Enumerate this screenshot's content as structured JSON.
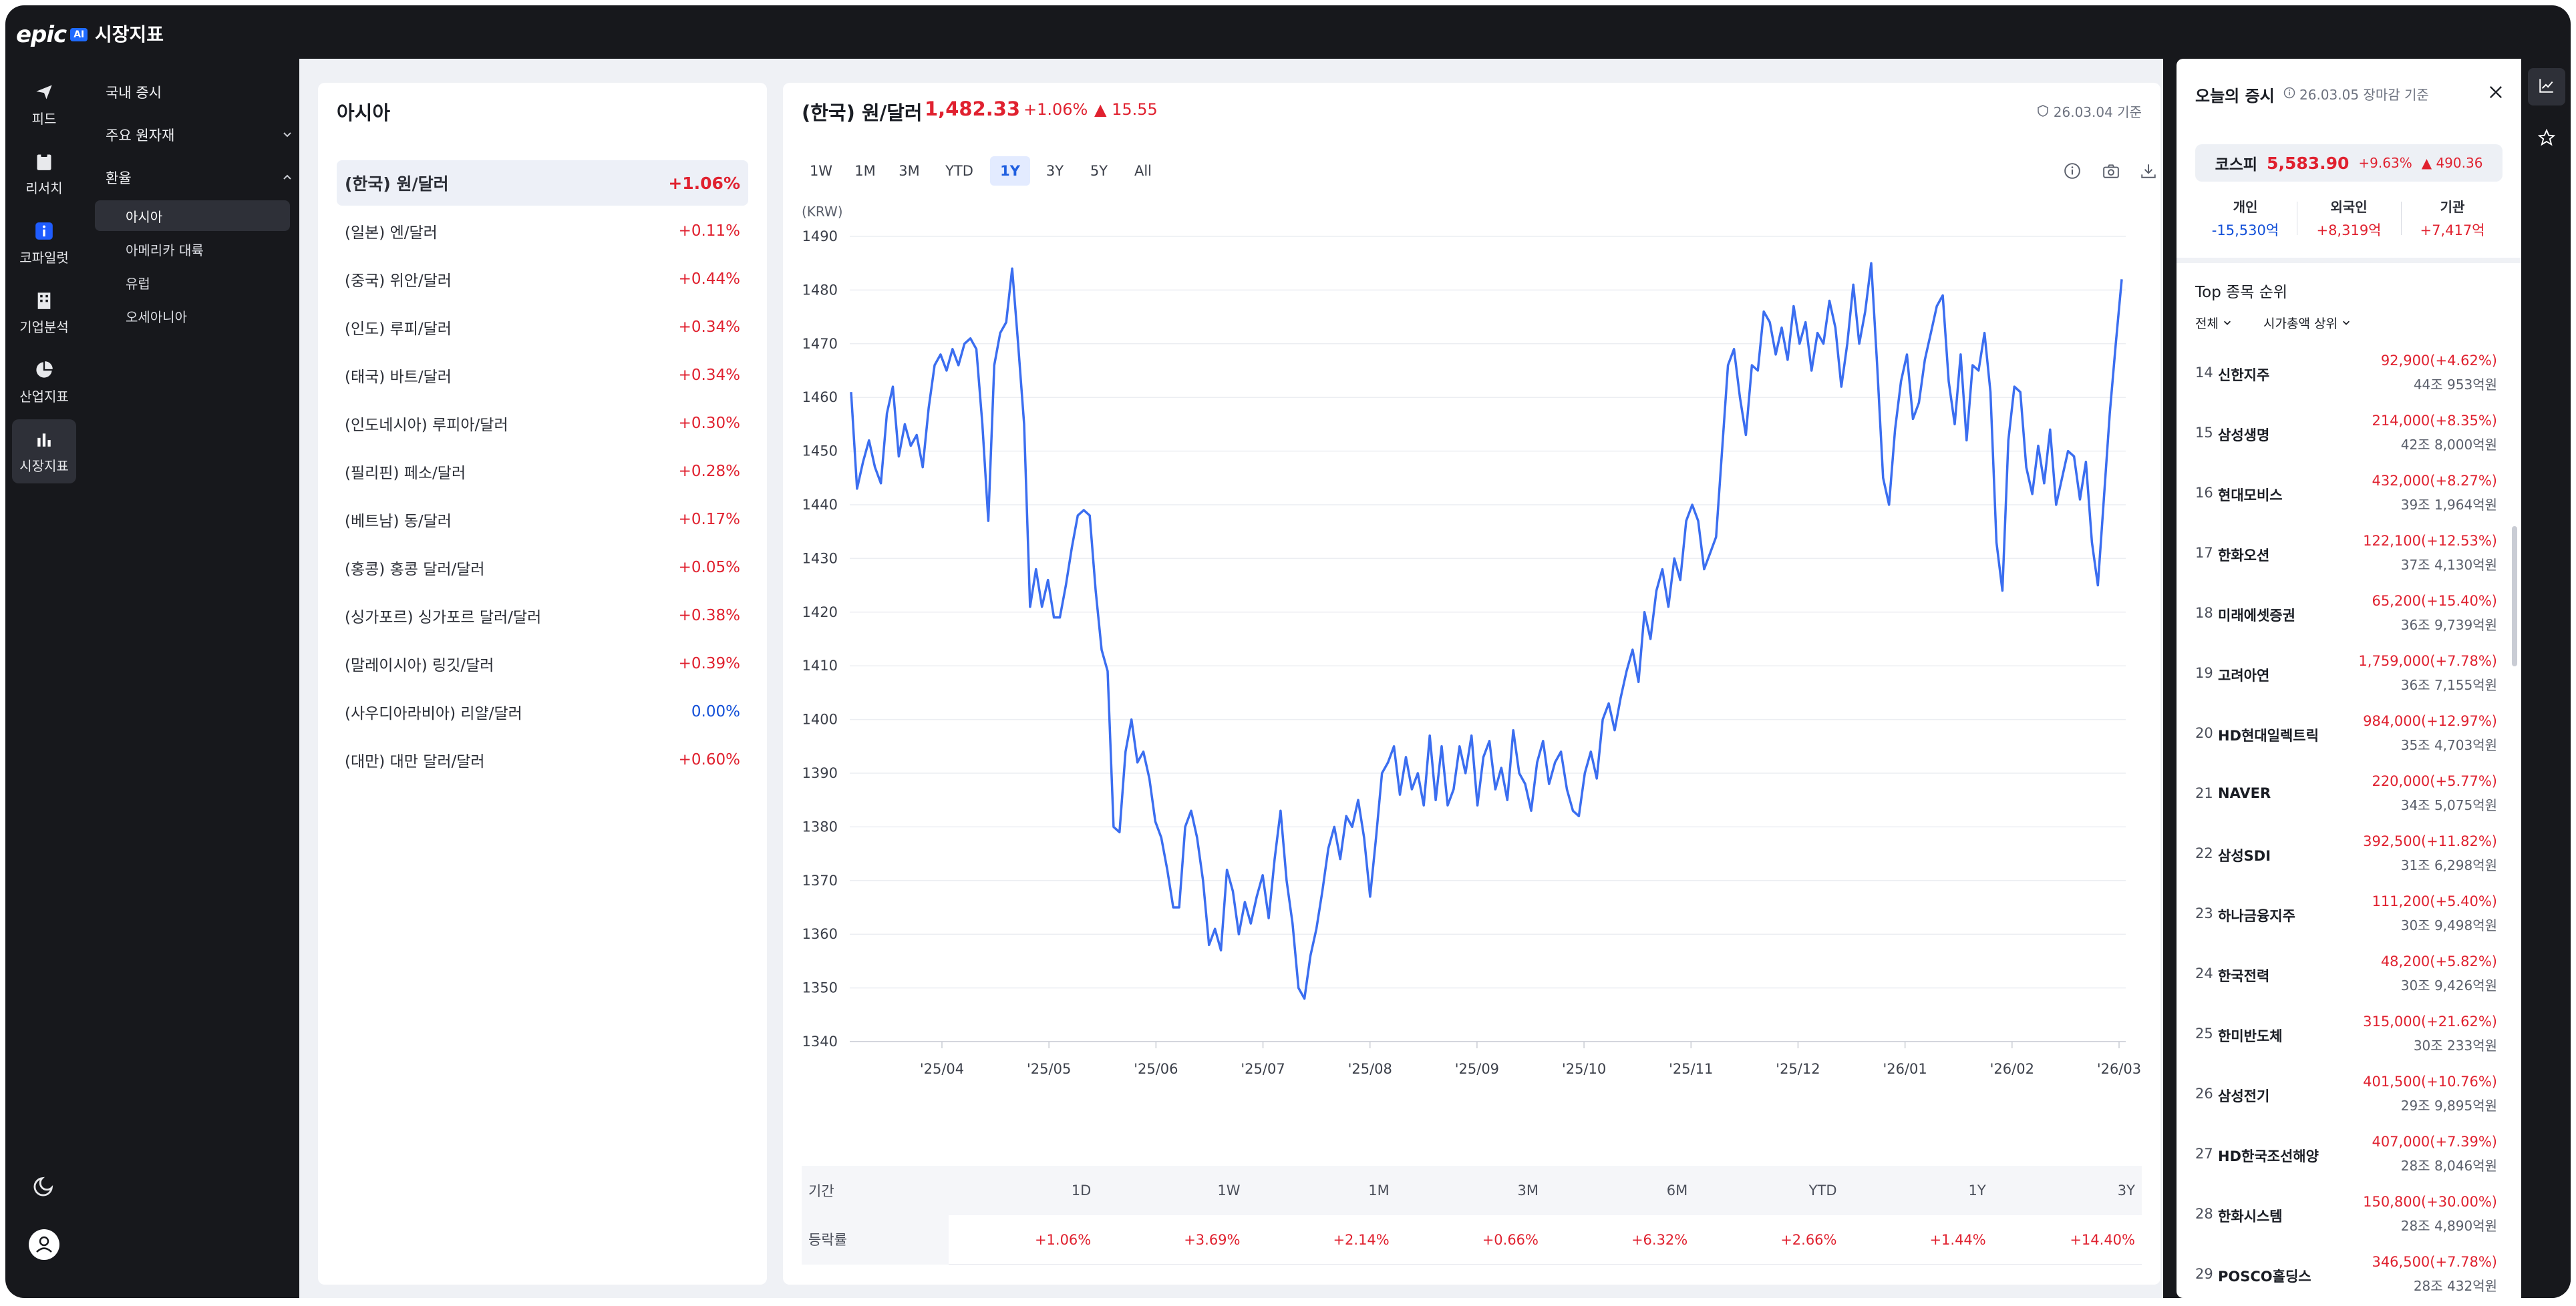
{
  "app": {
    "logo": "epic",
    "logo_badge": "AI",
    "title": "시장지표"
  },
  "rail": {
    "items": [
      {
        "label": "피드",
        "icon": "send-icon"
      },
      {
        "label": "리서치",
        "icon": "clipboard-icon"
      },
      {
        "label": "코파일럿",
        "icon": "info-icon"
      },
      {
        "label": "기업분석",
        "icon": "building-icon"
      },
      {
        "label": "산업지표",
        "icon": "pie-icon"
      },
      {
        "label": "시장지표",
        "icon": "bar-chart-icon"
      }
    ]
  },
  "subnav": {
    "domestic": "국내 증시",
    "commodities": "주요 원자재",
    "fx": "환율",
    "fx_items": [
      "아시아",
      "아메리카 대륙",
      "유럽",
      "오세아니아"
    ]
  },
  "list": {
    "title": "아시아",
    "items": [
      {
        "name": "(한국) 원/달러",
        "pct": "+1.06%"
      },
      {
        "name": "(일본) 엔/달러",
        "pct": "+0.11%"
      },
      {
        "name": "(중국) 위안/달러",
        "pct": "+0.44%"
      },
      {
        "name": "(인도) 루피/달러",
        "pct": "+0.34%"
      },
      {
        "name": "(태국) 바트/달러",
        "pct": "+0.34%"
      },
      {
        "name": "(인도네시아) 루피아/달러",
        "pct": "+0.30%"
      },
      {
        "name": "(필리핀) 페소/달러",
        "pct": "+0.28%"
      },
      {
        "name": "(베트남) 동/달러",
        "pct": "+0.17%"
      },
      {
        "name": "(홍콩) 홍콩 달러/달러",
        "pct": "+0.05%"
      },
      {
        "name": "(싱가포르) 싱가포르 달러/달러",
        "pct": "+0.38%"
      },
      {
        "name": "(말레이시아) 링깃/달러",
        "pct": "+0.39%"
      },
      {
        "name": "(사우디아라비아) 리얄/달러",
        "pct": "0.00%"
      },
      {
        "name": "(대만) 대만 달러/달러",
        "pct": "+0.60%"
      }
    ]
  },
  "chart_panel": {
    "title": "(한국) 원/달러",
    "price": "1,482.33",
    "pct": "+1.06%",
    "change": "▲ 15.55",
    "date": "26.03.04 기준",
    "ranges": [
      "1W",
      "1M",
      "3M",
      "YTD",
      "1Y",
      "3Y",
      "5Y",
      "All"
    ],
    "active_range": "1Y"
  },
  "stats": {
    "header_label": "기간",
    "row_label": "등락률",
    "periods": [
      "1D",
      "1W",
      "1M",
      "3M",
      "6M",
      "YTD",
      "1Y",
      "3Y"
    ],
    "values": [
      "+1.06%",
      "+3.69%",
      "+2.14%",
      "+0.66%",
      "+6.32%",
      "+2.66%",
      "+1.44%",
      "+14.40%"
    ]
  },
  "chart_data": {
    "type": "line",
    "ylabel": "(KRW)",
    "ylim": [
      1340,
      1490
    ],
    "yticks": [
      1340,
      1350,
      1360,
      1370,
      1380,
      1390,
      1400,
      1410,
      1420,
      1430,
      1440,
      1450,
      1460,
      1470,
      1480,
      1490
    ],
    "xticks": [
      "'25/04",
      "'25/05",
      "'25/06",
      "'25/07",
      "'25/08",
      "'25/09",
      "'25/10",
      "'25/11",
      "'25/12",
      "'26/01",
      "'26/02",
      "'26/03"
    ],
    "color": "#3b6ef0",
    "grid": true,
    "series": [
      {
        "values": [
          1461,
          1443,
          1448,
          1452,
          1447,
          1444,
          1457,
          1462,
          1449,
          1455,
          1451,
          1453,
          1447,
          1458,
          1466,
          1468,
          1465,
          1469,
          1466,
          1470,
          1471,
          1469,
          1455,
          1437,
          1466,
          1472,
          1474,
          1484,
          1470,
          1455,
          1421,
          1428,
          1421,
          1426,
          1419,
          1419,
          1425,
          1432,
          1438,
          1439,
          1438,
          1424,
          1413,
          1409,
          1380,
          1379,
          1394,
          1400,
          1392,
          1394,
          1389,
          1381,
          1378,
          1372,
          1365,
          1365,
          1380,
          1383,
          1378,
          1370,
          1358,
          1361,
          1357,
          1372,
          1368,
          1360,
          1366,
          1362,
          1367,
          1371,
          1363,
          1374,
          1383,
          1370,
          1362,
          1350,
          1348,
          1356,
          1361,
          1368,
          1376,
          1380,
          1374,
          1382,
          1380,
          1385,
          1378,
          1367,
          1378,
          1390,
          1392,
          1395,
          1386,
          1393,
          1387,
          1390,
          1384,
          1397,
          1385,
          1395,
          1384,
          1387,
          1395,
          1390,
          1397,
          1384,
          1393,
          1396,
          1387,
          1391,
          1385,
          1398,
          1390,
          1388,
          1383,
          1392,
          1396,
          1388,
          1392,
          1394,
          1387,
          1383,
          1382,
          1390,
          1394,
          1389,
          1400,
          1403,
          1398,
          1404,
          1409,
          1413,
          1407,
          1420,
          1415,
          1424,
          1428,
          1421,
          1430,
          1426,
          1437,
          1440,
          1437,
          1428,
          1431,
          1434,
          1450,
          1466,
          1469,
          1460,
          1453,
          1466,
          1465,
          1476,
          1474,
          1468,
          1473,
          1467,
          1477,
          1470,
          1474,
          1465,
          1472,
          1470,
          1478,
          1473,
          1462,
          1470,
          1481,
          1470,
          1476,
          1485,
          1466,
          1445,
          1440,
          1454,
          1463,
          1468,
          1456,
          1459,
          1467,
          1472,
          1477,
          1479,
          1463,
          1455,
          1468,
          1452,
          1466,
          1465,
          1472,
          1461,
          1433,
          1424,
          1452,
          1462,
          1461,
          1447,
          1442,
          1451,
          1444,
          1454,
          1440,
          1445,
          1450,
          1449,
          1441,
          1448,
          1433,
          1425,
          1441,
          1457,
          1470,
          1482
        ]
      }
    ]
  },
  "market": {
    "title": "오늘의 증시",
    "date": "26.03.05 장마감 기준",
    "index_name": "코스피",
    "index_value": "5,583.90",
    "index_pct": "+9.63%",
    "index_change": "▲ 490.36",
    "investors": [
      {
        "label": "개인",
        "value": "-15,530억"
      },
      {
        "label": "외국인",
        "value": "+8,319억"
      },
      {
        "label": "기관",
        "value": "+7,417억"
      }
    ],
    "top_title": "Top 종목 순위",
    "filter_all": "전체",
    "filter_sort": "시가총액 상위",
    "stocks": [
      {
        "rank": "14",
        "name": "신한지주",
        "price": "92,900(+4.62%)",
        "cap": "44조 953억원"
      },
      {
        "rank": "15",
        "name": "삼성생명",
        "price": "214,000(+8.35%)",
        "cap": "42조 8,000억원"
      },
      {
        "rank": "16",
        "name": "현대모비스",
        "price": "432,000(+8.27%)",
        "cap": "39조 1,964억원"
      },
      {
        "rank": "17",
        "name": "한화오션",
        "price": "122,100(+12.53%)",
        "cap": "37조 4,130억원"
      },
      {
        "rank": "18",
        "name": "미래에셋증권",
        "price": "65,200(+15.40%)",
        "cap": "36조 9,739억원"
      },
      {
        "rank": "19",
        "name": "고려아연",
        "price": "1,759,000(+7.78%)",
        "cap": "36조 7,155억원"
      },
      {
        "rank": "20",
        "name": "HD현대일렉트릭",
        "price": "984,000(+12.97%)",
        "cap": "35조 4,703억원"
      },
      {
        "rank": "21",
        "name": "NAVER",
        "price": "220,000(+5.77%)",
        "cap": "34조 5,075억원"
      },
      {
        "rank": "22",
        "name": "삼성SDI",
        "price": "392,500(+11.82%)",
        "cap": "31조 6,298억원"
      },
      {
        "rank": "23",
        "name": "하나금융지주",
        "price": "111,200(+5.40%)",
        "cap": "30조 9,498억원"
      },
      {
        "rank": "24",
        "name": "한국전력",
        "price": "48,200(+5.82%)",
        "cap": "30조 9,426억원"
      },
      {
        "rank": "25",
        "name": "한미반도체",
        "price": "315,000(+21.62%)",
        "cap": "30조 233억원"
      },
      {
        "rank": "26",
        "name": "삼성전기",
        "price": "401,500(+10.76%)",
        "cap": "29조 9,895억원"
      },
      {
        "rank": "27",
        "name": "HD한국조선해양",
        "price": "407,000(+7.39%)",
        "cap": "28조 8,046억원"
      },
      {
        "rank": "28",
        "name": "한화시스템",
        "price": "150,800(+30.00%)",
        "cap": "28조 4,890억원"
      },
      {
        "rank": "29",
        "name": "POSCO홀딩스",
        "price": "346,500(+7.78%)",
        "cap": "28조 432억원"
      }
    ]
  }
}
